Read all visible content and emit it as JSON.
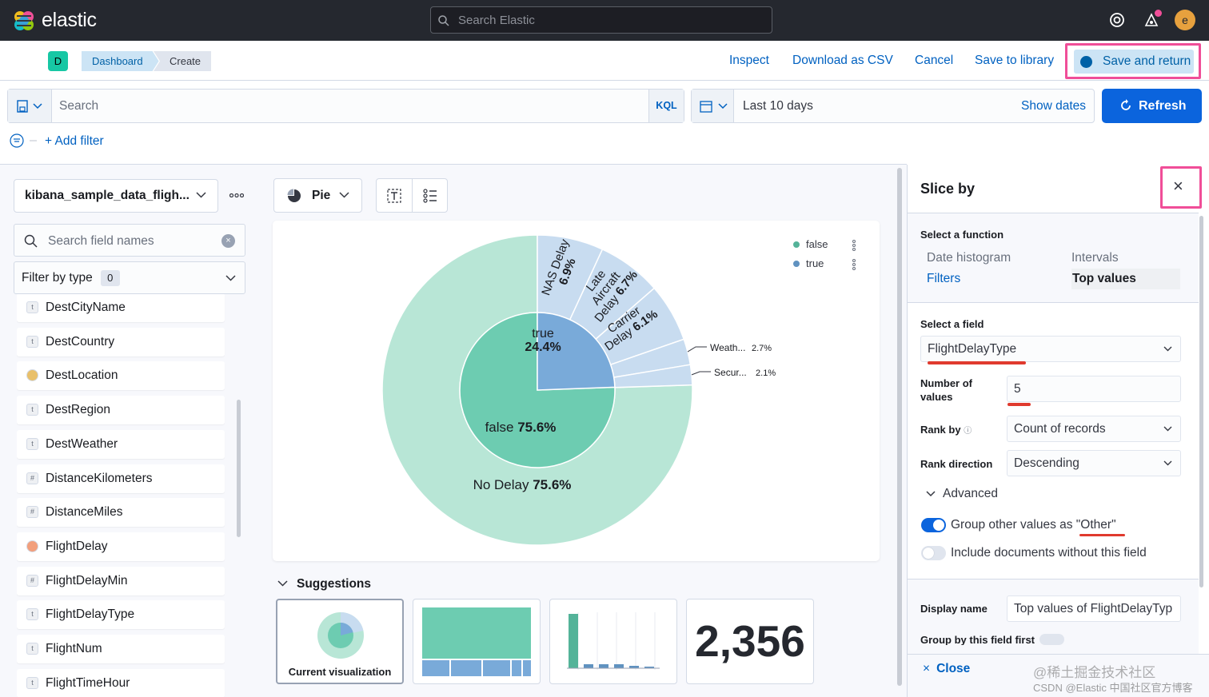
{
  "app": {
    "brand": "elastic",
    "search_placeholder": "Search Elastic",
    "avatar_letter": "e"
  },
  "nav": {
    "space_badge": "D",
    "breadcrumbs": [
      "Dashboard",
      "Create"
    ],
    "actions": [
      "Inspect",
      "Download as CSV",
      "Cancel",
      "Save to library"
    ],
    "save_return": "Save and return"
  },
  "query": {
    "search_placeholder": "Search",
    "language": "KQL",
    "date_range": "Last 10 days",
    "show_dates": "Show dates",
    "refresh": "Refresh",
    "add_filter": "+ Add filter"
  },
  "fields_panel": {
    "data_view": "kibana_sample_data_fligh...",
    "search_placeholder": "Search field names",
    "filter_by_type": "Filter by type",
    "filter_count": "0",
    "fields": [
      {
        "name": "DestCityName",
        "type": "t"
      },
      {
        "name": "DestCountry",
        "type": "t"
      },
      {
        "name": "DestLocation",
        "type": "geo"
      },
      {
        "name": "DestRegion",
        "type": "t"
      },
      {
        "name": "DestWeather",
        "type": "t"
      },
      {
        "name": "DistanceKilometers",
        "type": "#"
      },
      {
        "name": "DistanceMiles",
        "type": "#"
      },
      {
        "name": "FlightDelay",
        "type": "bool"
      },
      {
        "name": "FlightDelayMin",
        "type": "#"
      },
      {
        "name": "FlightDelayType",
        "type": "t"
      },
      {
        "name": "FlightNum",
        "type": "t"
      },
      {
        "name": "FlightTimeHour",
        "type": "t"
      }
    ]
  },
  "workspace": {
    "chart_type": "Pie",
    "legend": [
      {
        "label": "false",
        "color": "#54b399"
      },
      {
        "label": "true",
        "color": "#6092c0"
      }
    ],
    "suggestions_title": "Suggestions",
    "suggestions": [
      {
        "caption": "Current visualization"
      },
      {
        "caption": ""
      },
      {
        "caption": ""
      },
      {
        "caption": "",
        "value": "2,356"
      }
    ]
  },
  "chart_data": {
    "type": "pie",
    "inner_ring": [
      {
        "label": "false",
        "value": 75.6,
        "display": "false 75.6%",
        "color": "#6dccb1"
      },
      {
        "label": "true",
        "value": 24.4,
        "display": [
          "true",
          "24.4%"
        ],
        "color": "#79aad9"
      }
    ],
    "outer_ring": [
      {
        "label": "No Delay",
        "value": 75.6,
        "display": "No Delay 75.6%",
        "color": "#b8e6d6"
      },
      {
        "label": "NAS Delay",
        "value": 6.9,
        "display": [
          "NAS Delay",
          "6.9%"
        ],
        "color": "#c8dcf0"
      },
      {
        "label": "Late Aircraft Delay",
        "value": 6.7,
        "display": [
          "Late",
          "Aircraft",
          "Delay 6.7%"
        ],
        "color": "#c8dcf0"
      },
      {
        "label": "Carrier Delay",
        "value": 6.1,
        "display": [
          "Carrier",
          "Delay 6.1%"
        ],
        "color": "#c8dcf0"
      },
      {
        "label": "Weath...",
        "value": 2.7,
        "display": "2.7%",
        "color": "#c8dcf0"
      },
      {
        "label": "Secur...",
        "value": 2.1,
        "display": "2.1%",
        "color": "#c8dcf0"
      }
    ]
  },
  "slice_by": {
    "title": "Slice by",
    "function_label": "Select a function",
    "functions": [
      "Date histogram",
      "Intervals",
      "Filters",
      "Top values"
    ],
    "selected_function": "Top values",
    "field_label": "Select a field",
    "field_value": "FlightDelayType",
    "num_values_label": "Number of values",
    "num_values": "5",
    "rank_by_label": "Rank by",
    "rank_by": "Count of records",
    "rank_dir_label": "Rank direction",
    "rank_dir": "Descending",
    "advanced": "Advanced",
    "group_other": "Group other values as \"Other\"",
    "group_other_on": true,
    "include_missing": "Include documents without this field",
    "include_missing_on": false,
    "display_name_label": "Display name",
    "display_name": "Top values of FlightDelayTyp",
    "group_first_label": "Group by this field first",
    "close": "Close"
  },
  "watermark": {
    "line1": "@稀土掘金技术社区",
    "line2": "CSDN @Elastic 中国社区官方博客"
  },
  "colors": {
    "accent": "#0b64dd",
    "highlight": "#f04e98",
    "annotation": "#e03a2e"
  }
}
